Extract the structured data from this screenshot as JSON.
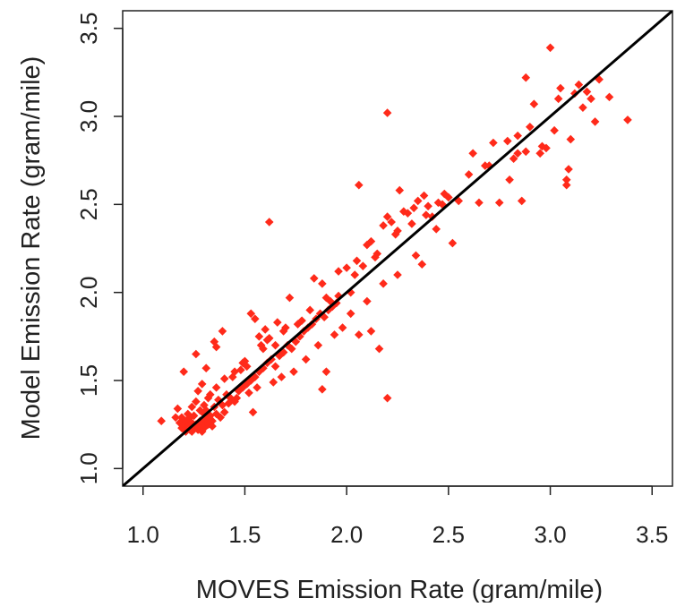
{
  "chart_data": {
    "type": "scatter",
    "title": "",
    "xlabel": "MOVES Emission Rate (gram/mile)",
    "ylabel": "Model Emission Rate (gram/mile)",
    "xlim": [
      0.9,
      3.6
    ],
    "ylim": [
      0.9,
      3.6
    ],
    "x_ticks": [
      "1.0",
      "1.5",
      "2.0",
      "2.5",
      "3.0",
      "3.5"
    ],
    "y_ticks": [
      "1.0",
      "1.5",
      "2.0",
      "2.5",
      "3.0",
      "3.5"
    ],
    "grid": false,
    "legend": "none",
    "marker": "diamond",
    "marker_color": "#ff2a1a",
    "line_color": "#000000",
    "reference_line": {
      "type": "identity",
      "slope": 1,
      "intercept": 0
    },
    "series": [
      {
        "points": [
          [
            1.09,
            1.27
          ],
          [
            1.16,
            1.29
          ],
          [
            1.17,
            1.34
          ],
          [
            1.18,
            1.26
          ],
          [
            1.19,
            1.23
          ],
          [
            1.2,
            1.25
          ],
          [
            1.21,
            1.27
          ],
          [
            1.22,
            1.24
          ],
          [
            1.23,
            1.22
          ],
          [
            1.24,
            1.21
          ],
          [
            1.25,
            1.23
          ],
          [
            1.26,
            1.25
          ],
          [
            1.27,
            1.22
          ],
          [
            1.28,
            1.24
          ],
          [
            1.29,
            1.26
          ],
          [
            1.3,
            1.23
          ],
          [
            1.31,
            1.28
          ],
          [
            1.32,
            1.25
          ],
          [
            1.33,
            1.3
          ],
          [
            1.34,
            1.27
          ],
          [
            1.36,
            1.31
          ],
          [
            1.38,
            1.29
          ],
          [
            1.4,
            1.32
          ],
          [
            1.25,
            1.3
          ],
          [
            1.28,
            1.33
          ],
          [
            1.3,
            1.36
          ],
          [
            1.22,
            1.31
          ],
          [
            1.26,
            1.38
          ],
          [
            1.32,
            1.4
          ],
          [
            1.35,
            1.35
          ],
          [
            1.37,
            1.39
          ],
          [
            1.39,
            1.36
          ],
          [
            1.41,
            1.42
          ],
          [
            1.43,
            1.4
          ],
          [
            1.45,
            1.38
          ],
          [
            1.47,
            1.44
          ],
          [
            1.49,
            1.46
          ],
          [
            1.51,
            1.48
          ],
          [
            1.53,
            1.5
          ],
          [
            1.55,
            1.52
          ],
          [
            1.57,
            1.55
          ],
          [
            1.59,
            1.57
          ],
          [
            1.61,
            1.6
          ],
          [
            1.63,
            1.62
          ],
          [
            1.65,
            1.58
          ],
          [
            1.67,
            1.64
          ],
          [
            1.69,
            1.66
          ],
          [
            1.71,
            1.7
          ],
          [
            1.73,
            1.68
          ],
          [
            1.75,
            1.72
          ],
          [
            1.77,
            1.75
          ],
          [
            1.79,
            1.78
          ],
          [
            1.81,
            1.8
          ],
          [
            1.83,
            1.82
          ],
          [
            1.85,
            1.85
          ],
          [
            1.87,
            1.88
          ],
          [
            1.89,
            1.86
          ],
          [
            1.91,
            1.9
          ],
          [
            1.93,
            1.92
          ],
          [
            1.95,
            1.94
          ],
          [
            1.2,
            1.55
          ],
          [
            1.26,
            1.65
          ],
          [
            1.29,
            1.48
          ],
          [
            1.31,
            1.57
          ],
          [
            1.35,
            1.72
          ],
          [
            1.36,
            1.69
          ],
          [
            1.39,
            1.78
          ],
          [
            1.44,
            1.52
          ],
          [
            1.48,
            1.56
          ],
          [
            1.5,
            1.61
          ],
          [
            1.53,
            1.88
          ],
          [
            1.55,
            1.85
          ],
          [
            1.57,
            1.75
          ],
          [
            1.6,
            1.79
          ],
          [
            1.58,
            1.7
          ],
          [
            1.62,
            1.74
          ],
          [
            1.66,
            1.83
          ],
          [
            1.7,
            1.8
          ],
          [
            1.72,
            1.97
          ],
          [
            1.78,
            1.84
          ],
          [
            1.84,
            2.08
          ],
          [
            1.88,
            2.05
          ],
          [
            1.9,
            1.97
          ],
          [
            1.96,
            2.12
          ],
          [
            2.0,
            2.14
          ],
          [
            2.02,
            2.0
          ],
          [
            2.05,
            2.18
          ],
          [
            2.08,
            2.15
          ],
          [
            2.1,
            2.27
          ],
          [
            2.12,
            2.29
          ],
          [
            2.15,
            2.22
          ],
          [
            2.18,
            2.38
          ],
          [
            2.2,
            2.43
          ],
          [
            2.22,
            2.4
          ],
          [
            2.25,
            2.35
          ],
          [
            2.28,
            2.46
          ],
          [
            2.3,
            2.45
          ],
          [
            2.33,
            2.48
          ],
          [
            2.35,
            2.52
          ],
          [
            2.38,
            2.55
          ],
          [
            2.4,
            2.49
          ],
          [
            2.42,
            2.43
          ],
          [
            2.45,
            2.51
          ],
          [
            2.48,
            2.56
          ],
          [
            2.5,
            2.54
          ],
          [
            1.24,
            1.35
          ],
          [
            1.27,
            1.44
          ],
          [
            1.33,
            1.42
          ],
          [
            1.42,
            1.37
          ],
          [
            1.46,
            1.4
          ],
          [
            1.52,
            1.43
          ],
          [
            1.54,
            1.32
          ],
          [
            1.56,
            1.46
          ],
          [
            1.64,
            1.49
          ],
          [
            1.68,
            1.52
          ],
          [
            1.74,
            1.55
          ],
          [
            1.8,
            1.62
          ],
          [
            1.86,
            1.7
          ],
          [
            1.94,
            1.76
          ],
          [
            2.06,
            1.76
          ],
          [
            2.12,
            1.78
          ],
          [
            2.16,
            1.68
          ],
          [
            2.2,
            1.4
          ],
          [
            1.88,
            1.45
          ],
          [
            1.9,
            1.55
          ],
          [
            1.98,
            1.8
          ],
          [
            2.02,
            1.88
          ],
          [
            2.1,
            1.95
          ],
          [
            2.18,
            2.05
          ],
          [
            2.25,
            2.1
          ],
          [
            2.34,
            2.21
          ],
          [
            2.37,
            2.16
          ],
          [
            2.44,
            2.36
          ],
          [
            2.52,
            2.28
          ],
          [
            1.62,
            2.4
          ],
          [
            2.06,
            2.61
          ],
          [
            2.2,
            3.02
          ],
          [
            2.62,
            2.79
          ],
          [
            2.65,
            2.51
          ],
          [
            2.7,
            2.72
          ],
          [
            2.72,
            2.85
          ],
          [
            2.75,
            2.51
          ],
          [
            2.8,
            2.64
          ],
          [
            2.82,
            2.76
          ],
          [
            2.84,
            2.89
          ],
          [
            2.86,
            2.52
          ],
          [
            2.88,
            2.8
          ],
          [
            2.79,
            2.86
          ],
          [
            2.88,
            3.22
          ],
          [
            2.92,
            3.07
          ],
          [
            2.95,
            2.79
          ],
          [
            2.98,
            2.82
          ],
          [
            3.0,
            3.39
          ],
          [
            3.02,
            2.92
          ],
          [
            3.05,
            3.16
          ],
          [
            3.08,
            2.61
          ],
          [
            3.09,
            2.7
          ],
          [
            3.1,
            2.87
          ],
          [
            3.12,
            3.13
          ],
          [
            3.14,
            3.18
          ],
          [
            3.18,
            3.14
          ],
          [
            3.2,
            3.1
          ],
          [
            3.22,
            2.97
          ],
          [
            3.24,
            3.21
          ],
          [
            3.29,
            3.11
          ],
          [
            3.38,
            2.98
          ],
          [
            3.08,
            2.64
          ],
          [
            3.16,
            3.05
          ],
          [
            2.96,
            2.83
          ],
          [
            2.84,
            2.79
          ],
          [
            2.26,
            2.58
          ],
          [
            2.55,
            2.52
          ],
          [
            1.23,
            1.29
          ],
          [
            1.28,
            1.27
          ],
          [
            1.3,
            1.31
          ],
          [
            1.34,
            1.24
          ],
          [
            1.21,
            1.21
          ],
          [
            1.19,
            1.29
          ],
          [
            1.24,
            1.26
          ],
          [
            1.29,
            1.21
          ],
          [
            1.31,
            1.33
          ],
          [
            1.36,
            1.46
          ],
          [
            1.4,
            1.51
          ],
          [
            1.45,
            1.55
          ],
          [
            1.49,
            1.6
          ],
          [
            1.51,
            1.58
          ],
          [
            1.59,
            1.68
          ],
          [
            1.61,
            1.73
          ],
          [
            1.65,
            1.7
          ],
          [
            1.69,
            1.78
          ],
          [
            1.76,
            1.82
          ],
          [
            1.82,
            1.9
          ],
          [
            1.92,
            1.95
          ],
          [
            1.96,
            1.98
          ],
          [
            2.04,
            2.1
          ],
          [
            2.14,
            2.2
          ],
          [
            2.24,
            2.33
          ],
          [
            2.32,
            2.39
          ],
          [
            2.39,
            2.44
          ],
          [
            2.47,
            2.5
          ],
          [
            2.6,
            2.67
          ],
          [
            2.68,
            2.72
          ],
          [
            2.9,
            2.94
          ],
          [
            3.04,
            3.1
          ]
        ]
      }
    ]
  }
}
